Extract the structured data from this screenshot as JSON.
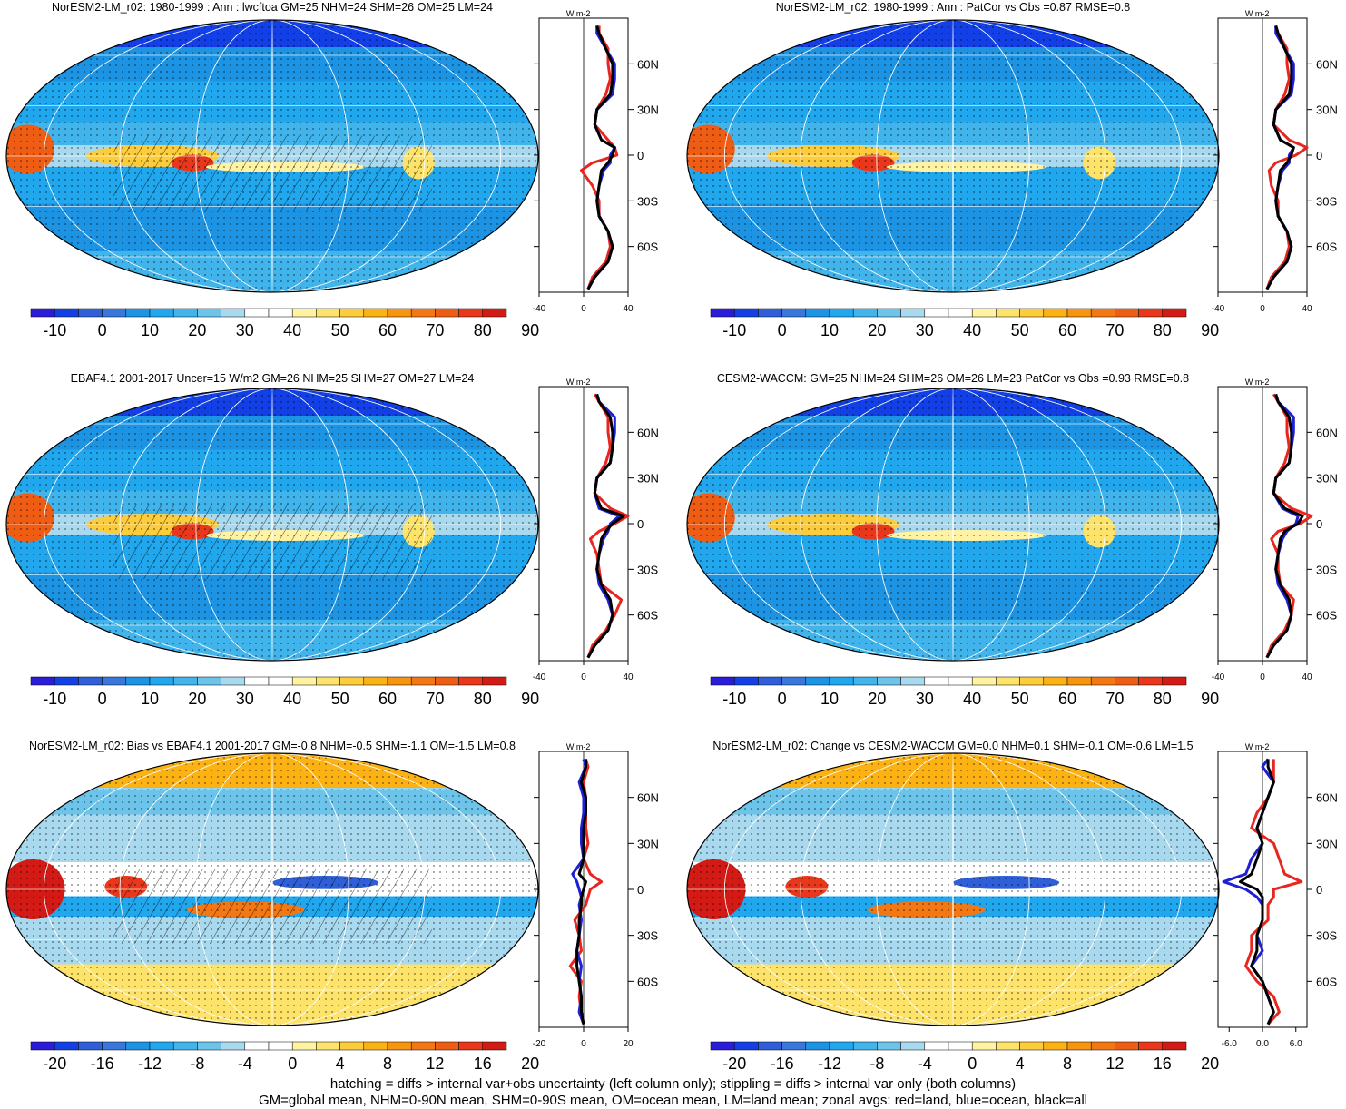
{
  "colors": {
    "land": "#e8251f",
    "ocean": "#1f1fd6",
    "all": "#000000",
    "palette_levels": [
      "#2a1cd8",
      "#1240e6",
      "#2f5fd8",
      "#3878dc",
      "#1c94e3",
      "#21a7ee",
      "#41b4ec",
      "#6cc4ea",
      "#a9d9ee",
      "#ffffff",
      "#ffffff",
      "#fff3a3",
      "#fde36a",
      "#fdcc3a",
      "#fcb213",
      "#f8950e",
      "#f37813",
      "#ef5d14",
      "#e8371a",
      "#d41a14"
    ]
  },
  "chart_data": [
    {
      "panel": "top-left",
      "type": "heatmap",
      "title": "NorESM2-LM_r02: 1980-1999 : Ann : lwcftoa GM=25 NHM=24 SHM=26 OM=25 LM=24",
      "colorbar_ticks": [
        "-10",
        "0",
        "10",
        "20",
        "30",
        "40",
        "50",
        "60",
        "70",
        "80",
        "90"
      ],
      "hatching": true,
      "zonal": {
        "unit": "W m-2",
        "xticks": [
          "-40",
          "0",
          "40"
        ],
        "xlim": [
          -40,
          40
        ],
        "yticks": [
          "60N",
          "30N",
          "0",
          "30S",
          "60S"
        ],
        "ylim": [
          -90,
          90
        ],
        "lat": [
          85,
          80,
          70,
          60,
          50,
          40,
          30,
          20,
          10,
          5,
          0,
          -5,
          -10,
          -20,
          -30,
          -40,
          -50,
          -60,
          -70,
          -80,
          -88
        ],
        "series": [
          {
            "name": "land",
            "values": [
              14,
              14,
              22,
              22,
              24,
              20,
              12,
              10,
              22,
              28,
              30,
              8,
              -2,
              8,
              14,
              14,
              22,
              24,
              20,
              8,
              4
            ]
          },
          {
            "name": "ocean",
            "values": [
              12,
              12,
              20,
              28,
              28,
              26,
              12,
              10,
              16,
              28,
              24,
              24,
              18,
              14,
              12,
              14,
              22,
              26,
              22,
              10,
              4
            ]
          },
          {
            "name": "all",
            "values": [
              12,
              14,
              20,
              26,
              26,
              24,
              12,
              10,
              16,
              28,
              26,
              22,
              16,
              14,
              12,
              14,
              22,
              26,
              22,
              10,
              4
            ]
          }
        ]
      }
    },
    {
      "panel": "top-right",
      "type": "heatmap",
      "title": "NorESM2-LM_r02: 1980-1999 : Ann : PatCor vs Obs =0.87 RMSE=0.8",
      "colorbar_ticks": [
        "-10",
        "0",
        "10",
        "20",
        "30",
        "40",
        "50",
        "60",
        "70",
        "80",
        "90"
      ],
      "hatching": false,
      "zonal": {
        "unit": "W m-2",
        "xticks": [
          "-40",
          "0",
          "40"
        ],
        "xlim": [
          -40,
          40
        ],
        "yticks": [
          "60N",
          "30N",
          "0",
          "30S",
          "60S"
        ],
        "ylim": [
          -90,
          90
        ],
        "lat": [
          85,
          80,
          70,
          60,
          50,
          40,
          30,
          20,
          10,
          5,
          0,
          -5,
          -10,
          -20,
          -30,
          -40,
          -50,
          -60,
          -70,
          -80,
          -88
        ],
        "series": [
          {
            "name": "land",
            "values": [
              12,
              14,
              22,
              22,
              24,
              20,
              12,
              10,
              24,
              40,
              30,
              12,
              6,
              8,
              14,
              14,
              22,
              24,
              20,
              8,
              4
            ]
          },
          {
            "name": "ocean",
            "values": [
              12,
              12,
              20,
              28,
              28,
              26,
              12,
              10,
              16,
              28,
              24,
              24,
              18,
              14,
              12,
              14,
              22,
              26,
              22,
              10,
              4
            ]
          },
          {
            "name": "all",
            "values": [
              12,
              14,
              20,
              26,
              26,
              24,
              12,
              10,
              16,
              28,
              26,
              22,
              16,
              14,
              12,
              14,
              22,
              26,
              22,
              10,
              4
            ]
          }
        ]
      }
    },
    {
      "panel": "middle-left",
      "type": "heatmap",
      "title": "EBAF4.1 2001-2017 Uncer=15 W/m2 GM=26 NHM=25 SHM=27 OM=27 LM=24",
      "colorbar_ticks": [
        "-10",
        "0",
        "10",
        "20",
        "30",
        "40",
        "50",
        "60",
        "70",
        "80",
        "90"
      ],
      "hatching": true,
      "zonal": {
        "unit": "W m-2",
        "xticks": [
          "-40",
          "0",
          "40"
        ],
        "xlim": [
          -40,
          40
        ],
        "yticks": [
          "60N",
          "30N",
          "0",
          "30S",
          "60S"
        ],
        "ylim": [
          -90,
          90
        ],
        "lat": [
          85,
          80,
          70,
          60,
          50,
          40,
          30,
          20,
          10,
          5,
          0,
          -5,
          -10,
          -20,
          -30,
          -40,
          -50,
          -60,
          -70,
          -80,
          -88
        ],
        "series": [
          {
            "name": "land",
            "values": [
              10,
              14,
              22,
              22,
              24,
              20,
              12,
              10,
              24,
              40,
              28,
              14,
              6,
              12,
              14,
              16,
              34,
              28,
              20,
              8,
              4
            ]
          },
          {
            "name": "ocean",
            "values": [
              12,
              14,
              28,
              28,
              26,
              24,
              12,
              10,
              14,
              32,
              24,
              22,
              18,
              14,
              12,
              14,
              22,
              26,
              22,
              10,
              4
            ]
          },
          {
            "name": "all",
            "values": [
              12,
              14,
              24,
              26,
              26,
              24,
              12,
              10,
              16,
              36,
              26,
              20,
              16,
              14,
              12,
              16,
              24,
              26,
              22,
              10,
              4
            ]
          }
        ]
      }
    },
    {
      "panel": "middle-right",
      "type": "heatmap",
      "title": "CESM2-WACCM: GM=25 NHM=24 SHM=26 OM=26 LM=23 PatCor vs Obs =0.93 RMSE=0.8",
      "colorbar_ticks": [
        "-10",
        "0",
        "10",
        "20",
        "30",
        "40",
        "50",
        "60",
        "70",
        "80",
        "90"
      ],
      "hatching": false,
      "zonal": {
        "unit": "W m-2",
        "xticks": [
          "-40",
          "0",
          "40"
        ],
        "xlim": [
          -40,
          40
        ],
        "yticks": [
          "60N",
          "30N",
          "0",
          "30S",
          "60S"
        ],
        "ylim": [
          -90,
          90
        ],
        "lat": [
          85,
          80,
          70,
          60,
          50,
          40,
          30,
          20,
          10,
          5,
          0,
          -5,
          -10,
          -20,
          -30,
          -40,
          -50,
          -60,
          -70,
          -80,
          -88
        ],
        "series": [
          {
            "name": "land",
            "values": [
              10,
              14,
              22,
              22,
              24,
              20,
              12,
              10,
              26,
              44,
              34,
              14,
              8,
              14,
              14,
              16,
              28,
              26,
              20,
              8,
              4
            ]
          },
          {
            "name": "ocean",
            "values": [
              12,
              14,
              28,
              28,
              26,
              24,
              12,
              10,
              18,
              32,
              30,
              22,
              18,
              14,
              12,
              14,
              22,
              26,
              22,
              10,
              4
            ]
          },
          {
            "name": "all",
            "values": [
              12,
              14,
              24,
              26,
              26,
              24,
              12,
              10,
              20,
              36,
              32,
              20,
              16,
              14,
              12,
              16,
              24,
              26,
              22,
              10,
              4
            ]
          }
        ]
      }
    },
    {
      "panel": "bottom-left",
      "type": "heatmap",
      "title": "NorESM2-LM_r02: Bias vs EBAF4.1 2001-2017 GM=-0.8 NHM=-0.5 SHM=-1.1 OM=-1.5 LM=0.8",
      "colorbar_ticks": [
        "-20",
        "-16",
        "-12",
        "-8",
        "-4",
        "0",
        "4",
        "8",
        "12",
        "16",
        "20"
      ],
      "hatching": true,
      "zonal": {
        "unit": "W m-2",
        "xticks": [
          "-20",
          "0",
          "20"
        ],
        "xlim": [
          -20,
          20
        ],
        "yticks": [
          "60N",
          "30N",
          "0",
          "30S",
          "60S"
        ],
        "ylim": [
          -90,
          90
        ],
        "lat": [
          85,
          80,
          70,
          60,
          50,
          40,
          30,
          20,
          10,
          5,
          0,
          -5,
          -10,
          -20,
          -30,
          -40,
          -50,
          -60,
          -70,
          -80,
          -88
        ],
        "series": [
          {
            "name": "land",
            "values": [
              1,
              2,
              0,
              1,
              1,
              1,
              2,
              0,
              3,
              8,
              3,
              2,
              1,
              -4,
              -2,
              -1,
              -6,
              -1,
              -2,
              -1,
              0
            ]
          },
          {
            "name": "ocean",
            "values": [
              0,
              1,
              -2,
              0,
              0,
              -1,
              -1,
              0,
              -5,
              -3,
              -2,
              -1,
              -2,
              -1,
              -2,
              -3,
              -1,
              -2,
              -1,
              -2,
              0
            ]
          },
          {
            "name": "all",
            "values": [
              1,
              1,
              -1,
              1,
              1,
              0,
              0,
              0,
              -2,
              1,
              0,
              -1,
              -1,
              -2,
              -2,
              -3,
              -3,
              -2,
              -1,
              -1,
              0
            ]
          }
        ]
      }
    },
    {
      "panel": "bottom-right",
      "type": "heatmap",
      "title": "NorESM2-LM_r02: Change vs CESM2-WACCM GM=0.0 NHM=0.1 SHM=-0.1 OM=-0.6 LM=1.5",
      "colorbar_ticks": [
        "-20",
        "-16",
        "-12",
        "-8",
        "-4",
        "0",
        "4",
        "8",
        "12",
        "16",
        "20"
      ],
      "hatching": false,
      "zonal": {
        "unit": "W m-2",
        "xticks": [
          "-6.0",
          "0.0",
          "6.0"
        ],
        "xlim": [
          -8,
          8
        ],
        "yticks": [
          "60N",
          "30N",
          "0",
          "30S",
          "60S"
        ],
        "ylim": [
          -90,
          90
        ],
        "lat": [
          85,
          80,
          70,
          60,
          50,
          40,
          30,
          20,
          10,
          5,
          0,
          -5,
          -10,
          -20,
          -30,
          -40,
          -50,
          -60,
          -70,
          -80,
          -88
        ],
        "series": [
          {
            "name": "land",
            "values": [
              2,
              2,
              2,
              1,
              -1,
              -2,
              2,
              3,
              4,
              7,
              2,
              2,
              1,
              1,
              -2,
              -2,
              -3,
              -1,
              2,
              3,
              1
            ]
          },
          {
            "name": "ocean",
            "values": [
              1,
              0,
              2,
              1,
              0,
              -1,
              0,
              -2,
              -3,
              -7,
              -3,
              -1,
              0,
              0,
              -1,
              0,
              -2,
              0,
              1,
              2,
              1
            ]
          },
          {
            "name": "all",
            "values": [
              1,
              1,
              2,
              1,
              0,
              -1,
              0,
              -1,
              -2,
              -4,
              -1,
              0,
              0,
              0,
              -1,
              -1,
              -2,
              0,
              1,
              2,
              1
            ]
          }
        ]
      }
    }
  ],
  "footer": {
    "line1": "hatching = diffs > internal var+obs uncertainty (left column only); stippling = diffs > internal var only (both columns)",
    "line2": "GM=global mean, NHM=0-90N mean, SHM=0-90S mean, OM=ocean mean, LM=land mean; zonal avgs: red=land, blue=ocean, black=all"
  }
}
